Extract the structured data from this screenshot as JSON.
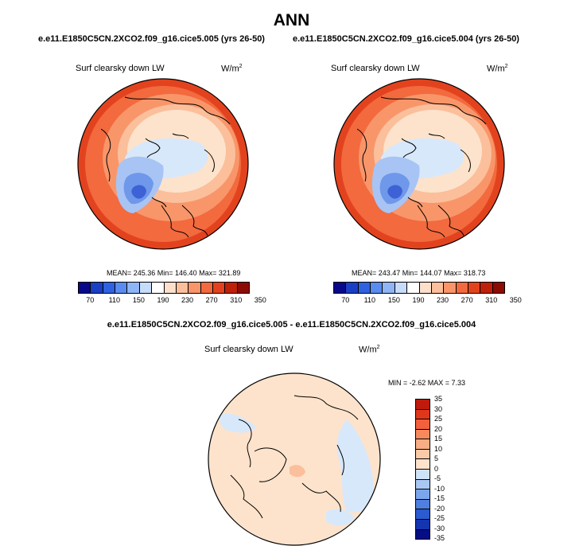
{
  "title": "ANN",
  "panels": [
    {
      "case_title": "e.e11.E1850C5CN.2XCO2.f09_g16.cice5.005 (yrs 26-50)",
      "var_label": "Surf clearsky down LW",
      "units": "W/m",
      "units_exp": "2",
      "stats": "MEAN= 245.36  Min= 146.40  Max= 321.89"
    },
    {
      "case_title": "e.e11.E1850C5CN.2XCO2.f09_g16.cice5.004 (yrs 26-50)",
      "var_label": "Surf clearsky down LW",
      "units": "W/m",
      "units_exp": "2",
      "stats": "MEAN= 243.47  Min= 144.07  Max= 318.73"
    }
  ],
  "diff_panel": {
    "title": "e.e11.E1850C5CN.2XCO2.f09_g16.cice5.005 - e.e11.E1850C5CN.2XCO2.f09_g16.cice5.004",
    "var_label": "Surf clearsky down LW",
    "units": "W/m",
    "units_exp": "2",
    "stats": "MIN =  -2.62 MAX =   7.33"
  },
  "abs_colorbar": {
    "colors": [
      "#08088a",
      "#1a3fc4",
      "#2f62e0",
      "#5a8cf0",
      "#8fb5f7",
      "#c6dcfa",
      "#ffffff",
      "#fde0cc",
      "#fbbf9c",
      "#f8966a",
      "#f26a3e",
      "#e2431e",
      "#bf2009",
      "#8c0b04"
    ],
    "tick_labels": [
      "70",
      "110",
      "150",
      "190",
      "230",
      "270",
      "310",
      "350"
    ]
  },
  "diff_colorbar": {
    "colors": [
      "#bf1a0c",
      "#e0371a",
      "#f2613c",
      "#f78a5c",
      "#f9ad84",
      "#fbcaa8",
      "#fde3cc",
      "#cfe3f8",
      "#a8c7f3",
      "#7ba6ec",
      "#4f7fe0",
      "#2a5bd0",
      "#1335b0",
      "#050e85"
    ],
    "tick_labels": [
      "35",
      "30",
      "25",
      "20",
      "15",
      "10",
      "5",
      "0",
      "-5",
      "-10",
      "-15",
      "-20",
      "-25",
      "-30",
      "-35"
    ]
  },
  "map_colors": {
    "ocean_light": "#fde3cc",
    "warm_1": "#fbbf9c",
    "warm_2": "#f8966a",
    "warm_3": "#f26a3e",
    "warm_4": "#e2431e",
    "cool_1": "#d8e8fb",
    "cool_2": "#a8c4f4",
    "cool_3": "#6f97ea",
    "cool_4": "#3d62d6"
  }
}
